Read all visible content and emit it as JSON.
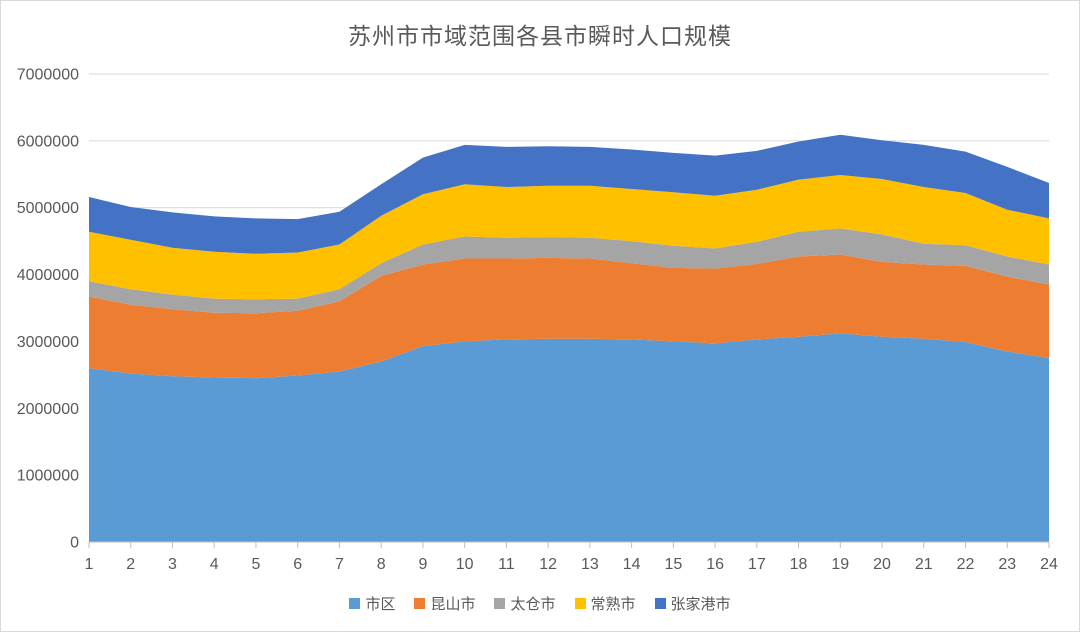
{
  "chart_data": {
    "type": "area",
    "stacked": true,
    "title": "苏州市市域范围各县市瞬时人口规模",
    "xlabel": "",
    "ylabel": "",
    "x": [
      1,
      2,
      3,
      4,
      5,
      6,
      7,
      8,
      9,
      10,
      11,
      12,
      13,
      14,
      15,
      16,
      17,
      18,
      19,
      20,
      21,
      22,
      23,
      24
    ],
    "ylim": [
      0,
      7000000
    ],
    "ytick_step": 1000000,
    "grid": "horizontal",
    "legend_position": "bottom",
    "series": [
      {
        "name": "市区",
        "color": "#5B9BD5",
        "values": [
          2600000,
          2520000,
          2480000,
          2460000,
          2450000,
          2490000,
          2550000,
          2700000,
          2930000,
          3000000,
          3030000,
          3040000,
          3040000,
          3030000,
          3000000,
          2970000,
          3030000,
          3070000,
          3120000,
          3070000,
          3040000,
          2990000,
          2850000,
          2750000
        ]
      },
      {
        "name": "昆山市",
        "color": "#ED7D31",
        "values": [
          1070000,
          1030000,
          1000000,
          970000,
          970000,
          970000,
          1050000,
          1280000,
          1220000,
          1240000,
          1210000,
          1210000,
          1200000,
          1140000,
          1100000,
          1120000,
          1130000,
          1200000,
          1180000,
          1120000,
          1110000,
          1140000,
          1120000,
          1100000
        ]
      },
      {
        "name": "太仓市",
        "color": "#A5A5A5",
        "values": [
          230000,
          230000,
          220000,
          210000,
          210000,
          180000,
          180000,
          190000,
          300000,
          330000,
          310000,
          310000,
          310000,
          330000,
          330000,
          300000,
          330000,
          370000,
          390000,
          410000,
          310000,
          310000,
          300000,
          300000
        ]
      },
      {
        "name": "常熟市",
        "color": "#FFC000",
        "values": [
          740000,
          740000,
          700000,
          700000,
          680000,
          690000,
          670000,
          710000,
          750000,
          780000,
          760000,
          770000,
          780000,
          780000,
          800000,
          790000,
          780000,
          780000,
          800000,
          830000,
          850000,
          780000,
          700000,
          690000
        ]
      },
      {
        "name": "张家港市",
        "color": "#4472C4",
        "values": [
          520000,
          490000,
          530000,
          530000,
          530000,
          500000,
          490000,
          470000,
          550000,
          590000,
          600000,
          590000,
          580000,
          590000,
          590000,
          600000,
          580000,
          570000,
          600000,
          580000,
          630000,
          620000,
          640000,
          530000
        ]
      }
    ],
    "colors": {
      "gridline": "#D9D9D9",
      "axis_line": "#BFBFBF",
      "axis_text": "#595959",
      "title_text": "#595959",
      "frame_border": "#D9D9D9",
      "background": "#FFFFFF"
    }
  }
}
